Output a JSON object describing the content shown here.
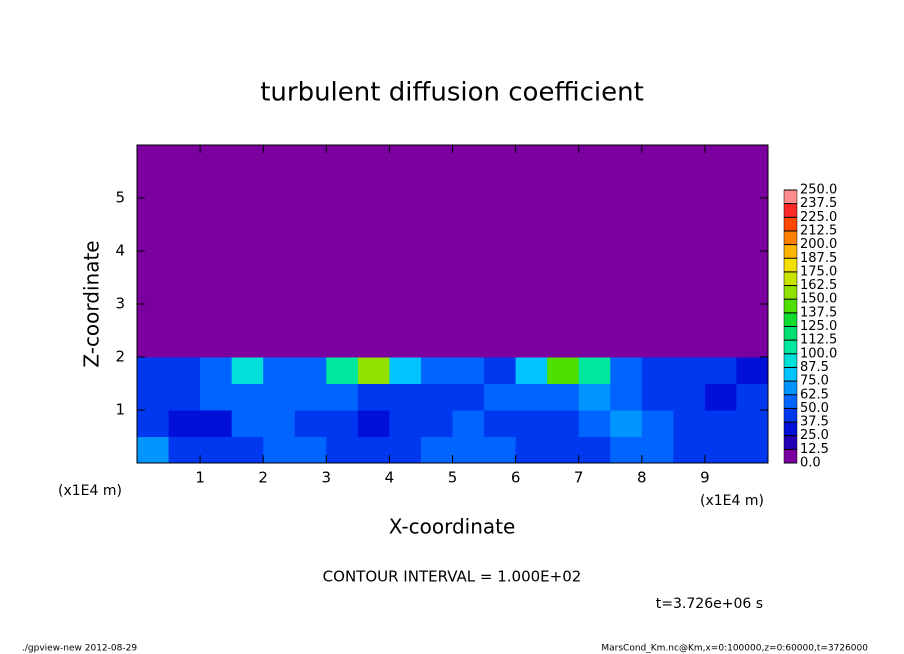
{
  "chart_data": {
    "type": "heatmap",
    "title": "turbulent diffusion coefficient",
    "x_label": "X-coordinate",
    "y_label": "Z-coordinate",
    "x_unit": "(x1E4 m)",
    "y_unit": "(x1E4 m)",
    "xlim": [
      0,
      10
    ],
    "ylim": [
      0,
      6
    ],
    "xticks": [
      1,
      2,
      3,
      4,
      5,
      6,
      7,
      8,
      9
    ],
    "yticks": [
      1,
      2,
      3,
      4,
      5
    ],
    "z": [
      [
        70,
        45,
        40,
        45,
        50,
        55,
        45,
        40,
        45,
        50,
        55,
        50,
        45,
        40,
        45,
        55,
        50,
        45,
        40,
        45
      ],
      [
        45,
        30,
        30,
        50,
        55,
        45,
        40,
        35,
        40,
        45,
        50,
        45,
        40,
        45,
        60,
        70,
        55,
        45,
        40,
        40
      ],
      [
        40,
        45,
        50,
        55,
        60,
        50,
        55,
        45,
        40,
        45,
        45,
        50,
        55,
        60,
        70,
        60,
        45,
        40,
        35,
        40
      ],
      [
        40,
        45,
        55,
        90,
        50,
        60,
        110,
        150,
        80,
        55,
        50,
        45,
        80,
        140,
        110,
        60,
        45,
        40,
        40,
        35
      ],
      [
        0,
        0,
        0,
        0,
        0,
        0,
        0,
        0,
        0,
        0,
        0,
        0,
        0,
        0,
        0,
        0,
        0,
        0,
        0,
        0
      ],
      [
        0,
        0,
        0,
        0,
        0,
        0,
        0,
        0,
        0,
        0,
        0,
        0,
        0,
        0,
        0,
        0,
        0,
        0,
        0,
        0
      ],
      [
        0,
        0,
        0,
        0,
        0,
        0,
        0,
        0,
        0,
        0,
        0,
        0,
        0,
        0,
        0,
        0,
        0,
        0,
        0,
        0
      ],
      [
        0,
        0,
        0,
        0,
        0,
        0,
        0,
        0,
        0,
        0,
        0,
        0,
        0,
        0,
        0,
        0,
        0,
        0,
        0,
        0
      ],
      [
        0,
        0,
        0,
        0,
        0,
        0,
        0,
        0,
        0,
        0,
        0,
        0,
        0,
        0,
        0,
        0,
        0,
        0,
        0,
        0
      ],
      [
        0,
        0,
        0,
        0,
        0,
        0,
        0,
        0,
        0,
        0,
        0,
        0,
        0,
        0,
        0,
        0,
        0,
        0,
        0,
        0
      ],
      [
        0,
        0,
        0,
        0,
        0,
        0,
        0,
        0,
        0,
        0,
        0,
        0,
        0,
        0,
        0,
        0,
        0,
        0,
        0,
        0
      ],
      [
        0,
        0,
        0,
        0,
        0,
        0,
        0,
        0,
        0,
        0,
        0,
        0,
        0,
        0,
        0,
        0,
        0,
        0,
        0,
        0
      ]
    ],
    "levels": [
      {
        "value": 0,
        "label": "0.0"
      },
      {
        "value": 12.5,
        "label": "12.5"
      },
      {
        "value": 25,
        "label": "25.0"
      },
      {
        "value": 37.5,
        "label": "37.5"
      },
      {
        "value": 50,
        "label": "50.0"
      },
      {
        "value": 62.5,
        "label": "62.5"
      },
      {
        "value": 75,
        "label": "75.0"
      },
      {
        "value": 87.5,
        "label": "87.5"
      },
      {
        "value": 100,
        "label": "100.0"
      },
      {
        "value": 112.5,
        "label": "112.5"
      },
      {
        "value": 125,
        "label": "125.0"
      },
      {
        "value": 137.5,
        "label": "137.5"
      },
      {
        "value": 150,
        "label": "150.0"
      },
      {
        "value": 162.5,
        "label": "162.5"
      },
      {
        "value": 175,
        "label": "175.0"
      },
      {
        "value": 187.5,
        "label": "187.5"
      },
      {
        "value": 200,
        "label": "200.0"
      },
      {
        "value": 212.5,
        "label": "212.5"
      },
      {
        "value": 225,
        "label": "225.0"
      },
      {
        "value": 237.5,
        "label": "237.5"
      },
      {
        "value": 250,
        "label": "250.0"
      }
    ],
    "colors": [
      "#7c00a0",
      "#2200b4",
      "#0010d8",
      "#0038f0",
      "#0064ff",
      "#0094ff",
      "#00c4ff",
      "#00e0d8",
      "#00e8a0",
      "#00e070",
      "#10dc30",
      "#50e000",
      "#90e000",
      "#c8e400",
      "#f4e000",
      "#ffb400",
      "#ff8000",
      "#ff4800",
      "#ff2828",
      "#ff8c8c"
    ],
    "contour_interval": "CONTOUR INTERVAL = 1.000E+02",
    "time_label": "t=3.726e+06 s",
    "footer_left": "./gpview-new  2012-08-29",
    "footer_right": "MarsCond_Km.nc@Km,x=0:100000,z=0:60000,t=3726000"
  }
}
